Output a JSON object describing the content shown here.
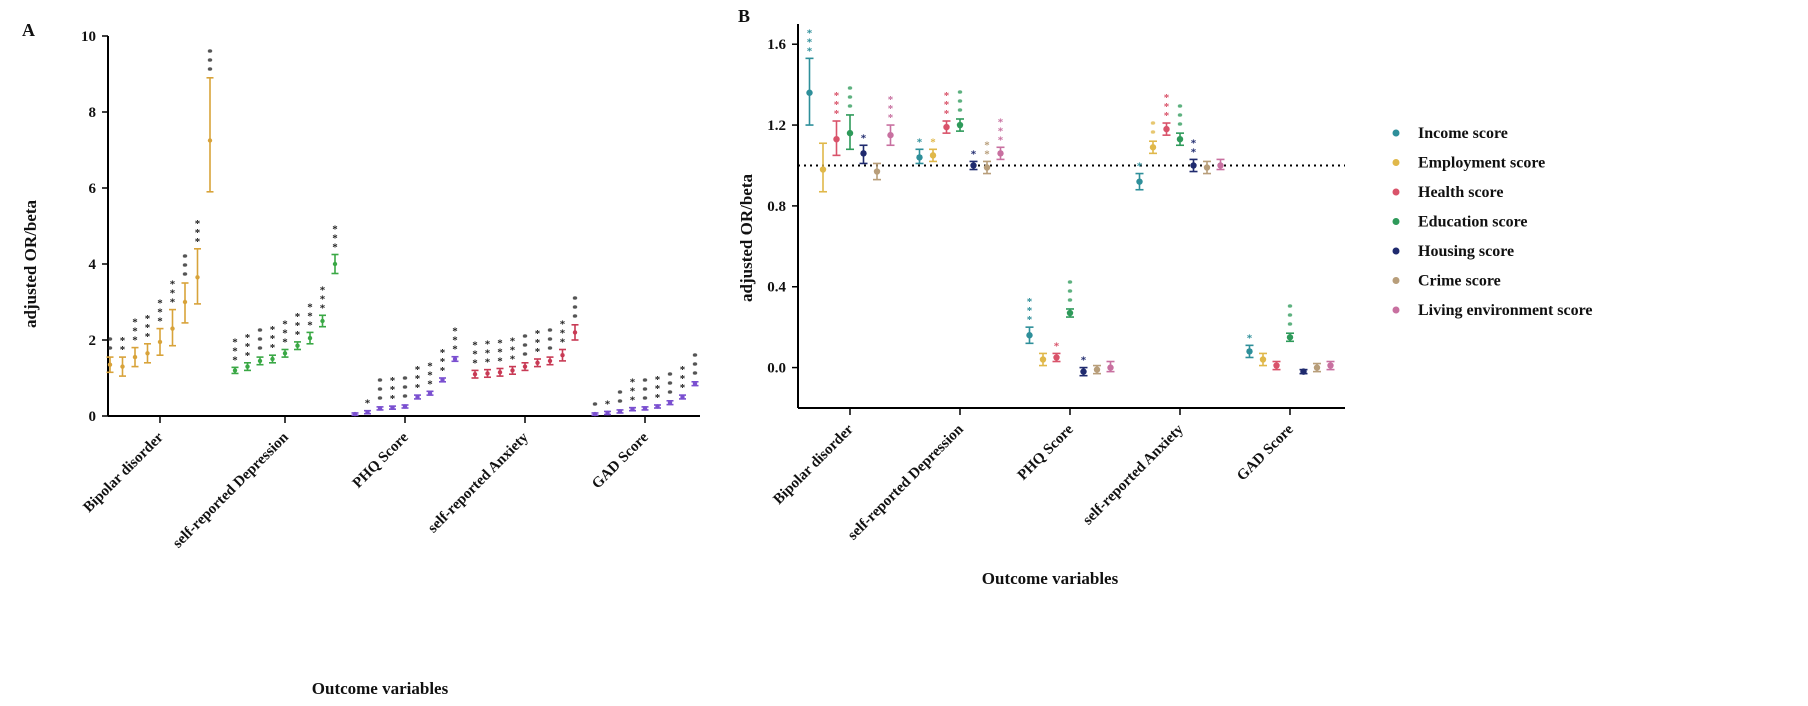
{
  "chart_data": [
    {
      "panel_label": "A",
      "type": "scatter",
      "xlabel": "Outcome variables",
      "ylabel": "adjusted OR/beta",
      "ylim": [
        0,
        10
      ],
      "yticks": [
        "0",
        "2",
        "4",
        "6",
        "8",
        "10"
      ],
      "categories": [
        "Bipolar disorder",
        "self-reported Depression",
        "PHQ Score",
        "self-reported Anxiety",
        "GAD Score"
      ],
      "groups": [
        {
          "category": "Bipolar disorder",
          "color": "#d8a33a",
          "points": [
            {
              "y": 1.35,
              "lo": 1.15,
              "hi": 1.55,
              "stars": "**"
            },
            {
              "y": 1.3,
              "lo": 1.05,
              "hi": 1.55,
              "stars": "**"
            },
            {
              "y": 1.55,
              "lo": 1.3,
              "hi": 1.8,
              "stars": "***"
            },
            {
              "y": 1.65,
              "lo": 1.4,
              "hi": 1.9,
              "stars": "***"
            },
            {
              "y": 1.95,
              "lo": 1.6,
              "hi": 2.3,
              "stars": "***"
            },
            {
              "y": 2.3,
              "lo": 1.85,
              "hi": 2.8,
              "stars": "***"
            },
            {
              "y": 3.0,
              "lo": 2.45,
              "hi": 3.5,
              "stars": "***"
            },
            {
              "y": 3.65,
              "lo": 2.95,
              "hi": 4.4,
              "stars": "***"
            },
            {
              "y": 7.25,
              "lo": 5.9,
              "hi": 8.9,
              "stars": "***"
            }
          ]
        },
        {
          "category": "self-reported Depression",
          "color": "#3aa845",
          "points": [
            {
              "y": 1.2,
              "lo": 1.12,
              "hi": 1.28,
              "stars": "***"
            },
            {
              "y": 1.3,
              "lo": 1.2,
              "hi": 1.4,
              "stars": "***"
            },
            {
              "y": 1.45,
              "lo": 1.35,
              "hi": 1.55,
              "stars": "***"
            },
            {
              "y": 1.5,
              "lo": 1.4,
              "hi": 1.6,
              "stars": "***"
            },
            {
              "y": 1.65,
              "lo": 1.55,
              "hi": 1.75,
              "stars": "***"
            },
            {
              "y": 1.85,
              "lo": 1.75,
              "hi": 1.95,
              "stars": "***"
            },
            {
              "y": 2.05,
              "lo": 1.9,
              "hi": 2.2,
              "stars": "***"
            },
            {
              "y": 2.5,
              "lo": 2.35,
              "hi": 2.65,
              "stars": "***"
            },
            {
              "y": 4.0,
              "lo": 3.75,
              "hi": 4.25,
              "stars": "***"
            }
          ]
        },
        {
          "category": "PHQ Score",
          "color": "#7a4fd0",
          "points": [
            {
              "y": 0.05,
              "lo": 0.02,
              "hi": 0.08,
              "stars": ""
            },
            {
              "y": 0.1,
              "lo": 0.06,
              "hi": 0.14,
              "stars": "*"
            },
            {
              "y": 0.2,
              "lo": 0.16,
              "hi": 0.24,
              "stars": "***"
            },
            {
              "y": 0.22,
              "lo": 0.18,
              "hi": 0.26,
              "stars": "***"
            },
            {
              "y": 0.25,
              "lo": 0.21,
              "hi": 0.29,
              "stars": "***"
            },
            {
              "y": 0.5,
              "lo": 0.45,
              "hi": 0.55,
              "stars": "***"
            },
            {
              "y": 0.6,
              "lo": 0.55,
              "hi": 0.65,
              "stars": "***"
            },
            {
              "y": 0.95,
              "lo": 0.9,
              "hi": 1.0,
              "stars": "***"
            },
            {
              "y": 1.5,
              "lo": 1.44,
              "hi": 1.56,
              "stars": "***"
            }
          ]
        },
        {
          "category": "self-reported Anxiety",
          "color": "#c83a55",
          "points": [
            {
              "y": 1.1,
              "lo": 1.0,
              "hi": 1.2,
              "stars": "***"
            },
            {
              "y": 1.12,
              "lo": 1.02,
              "hi": 1.22,
              "stars": "***"
            },
            {
              "y": 1.15,
              "lo": 1.05,
              "hi": 1.25,
              "stars": "***"
            },
            {
              "y": 1.2,
              "lo": 1.1,
              "hi": 1.3,
              "stars": "***"
            },
            {
              "y": 1.3,
              "lo": 1.2,
              "hi": 1.4,
              "stars": "***"
            },
            {
              "y": 1.4,
              "lo": 1.3,
              "hi": 1.5,
              "stars": "***"
            },
            {
              "y": 1.45,
              "lo": 1.35,
              "hi": 1.55,
              "stars": "***"
            },
            {
              "y": 1.6,
              "lo": 1.45,
              "hi": 1.75,
              "stars": "***"
            },
            {
              "y": 2.2,
              "lo": 2.0,
              "hi": 2.4,
              "stars": "***"
            }
          ]
        },
        {
          "category": "GAD Score",
          "color": "#7a4fd0",
          "points": [
            {
              "y": 0.05,
              "lo": 0.02,
              "hi": 0.08,
              "stars": "*"
            },
            {
              "y": 0.08,
              "lo": 0.04,
              "hi": 0.12,
              "stars": "*"
            },
            {
              "y": 0.12,
              "lo": 0.08,
              "hi": 0.16,
              "stars": "**"
            },
            {
              "y": 0.18,
              "lo": 0.14,
              "hi": 0.22,
              "stars": "***"
            },
            {
              "y": 0.2,
              "lo": 0.16,
              "hi": 0.24,
              "stars": "***"
            },
            {
              "y": 0.25,
              "lo": 0.21,
              "hi": 0.29,
              "stars": "***"
            },
            {
              "y": 0.35,
              "lo": 0.3,
              "hi": 0.4,
              "stars": "***"
            },
            {
              "y": 0.5,
              "lo": 0.45,
              "hi": 0.55,
              "stars": "***"
            },
            {
              "y": 0.85,
              "lo": 0.8,
              "hi": 0.9,
              "stars": "***"
            }
          ]
        }
      ]
    },
    {
      "panel_label": "B",
      "type": "scatter",
      "xlabel": "Outcome variables",
      "ylabel": "adjusted OR/beta",
      "ylim": [
        -0.2,
        1.7
      ],
      "yticks": [
        {
          "value": 0.0,
          "label": "0.0"
        },
        {
          "value": 0.4,
          "label": "0.4"
        },
        {
          "value": 0.8,
          "label": "0.8"
        },
        {
          "value": 1.2,
          "label": "1.2"
        },
        {
          "value": 1.6,
          "label": "1.6"
        }
      ],
      "reference_line": 1.0,
      "categories": [
        "Bipolar disorder",
        "self-reported Depression",
        "PHQ Score",
        "self-reported Anxiety",
        "GAD Score"
      ],
      "series": [
        {
          "name": "Income score",
          "color": "#2e8f9a",
          "points": [
            {
              "y": 1.36,
              "lo": 1.2,
              "hi": 1.53,
              "stars": "***"
            },
            {
              "y": 1.04,
              "lo": 1.01,
              "hi": 1.08,
              "stars": "*"
            },
            {
              "y": 0.16,
              "lo": 0.12,
              "hi": 0.2,
              "stars": "***"
            },
            {
              "y": 0.92,
              "lo": 0.88,
              "hi": 0.96,
              "stars": "*"
            },
            {
              "y": 0.08,
              "lo": 0.05,
              "hi": 0.11,
              "stars": "*"
            }
          ]
        },
        {
          "name": "Employment score",
          "color": "#e0b84a",
          "points": [
            {
              "y": 0.98,
              "lo": 0.87,
              "hi": 1.11,
              "stars": ""
            },
            {
              "y": 1.05,
              "lo": 1.02,
              "hi": 1.08,
              "stars": "*"
            },
            {
              "y": 0.04,
              "lo": 0.01,
              "hi": 0.07,
              "stars": ""
            },
            {
              "y": 1.09,
              "lo": 1.06,
              "hi": 1.12,
              "stars": "**"
            },
            {
              "y": 0.04,
              "lo": 0.01,
              "hi": 0.07,
              "stars": ""
            }
          ]
        },
        {
          "name": "Health score",
          "color": "#d9536a",
          "points": [
            {
              "y": 1.13,
              "lo": 1.05,
              "hi": 1.22,
              "stars": "***"
            },
            {
              "y": 1.19,
              "lo": 1.16,
              "hi": 1.22,
              "stars": "***"
            },
            {
              "y": 0.05,
              "lo": 0.03,
              "hi": 0.07,
              "stars": "*"
            },
            {
              "y": 1.18,
              "lo": 1.15,
              "hi": 1.21,
              "stars": "***"
            },
            {
              "y": 0.01,
              "lo": -0.01,
              "hi": 0.03,
              "stars": ""
            }
          ]
        },
        {
          "name": "Education score",
          "color": "#2e9a5a",
          "points": [
            {
              "y": 1.16,
              "lo": 1.08,
              "hi": 1.25,
              "stars": "***"
            },
            {
              "y": 1.2,
              "lo": 1.17,
              "hi": 1.23,
              "stars": "***"
            },
            {
              "y": 0.27,
              "lo": 0.25,
              "hi": 0.29,
              "stars": "***"
            },
            {
              "y": 1.13,
              "lo": 1.1,
              "hi": 1.16,
              "stars": "***"
            },
            {
              "y": 0.15,
              "lo": 0.13,
              "hi": 0.17,
              "stars": "***"
            }
          ]
        },
        {
          "name": "Housing score",
          "color": "#1f2a6e",
          "points": [
            {
              "y": 1.06,
              "lo": 1.01,
              "hi": 1.1,
              "stars": "*"
            },
            {
              "y": 1.0,
              "lo": 0.98,
              "hi": 1.02,
              "stars": "*"
            },
            {
              "y": -0.02,
              "lo": -0.04,
              "hi": 0.0,
              "stars": "*"
            },
            {
              "y": 1.0,
              "lo": 0.97,
              "hi": 1.03,
              "stars": "**"
            },
            {
              "y": -0.02,
              "lo": -0.03,
              "hi": -0.01,
              "stars": ""
            }
          ]
        },
        {
          "name": "Crime score",
          "color": "#b89e7a",
          "points": [
            {
              "y": 0.97,
              "lo": 0.93,
              "hi": 1.01,
              "stars": ""
            },
            {
              "y": 0.99,
              "lo": 0.96,
              "hi": 1.02,
              "stars": "**"
            },
            {
              "y": -0.01,
              "lo": -0.03,
              "hi": 0.01,
              "stars": ""
            },
            {
              "y": 0.99,
              "lo": 0.96,
              "hi": 1.02,
              "stars": ""
            },
            {
              "y": 0.0,
              "lo": -0.02,
              "hi": 0.02,
              "stars": ""
            }
          ]
        },
        {
          "name": "Living environment score",
          "color": "#c870a0",
          "points": [
            {
              "y": 1.15,
              "lo": 1.1,
              "hi": 1.2,
              "stars": "***"
            },
            {
              "y": 1.06,
              "lo": 1.03,
              "hi": 1.09,
              "stars": "***"
            },
            {
              "y": 0.0,
              "lo": -0.02,
              "hi": 0.03,
              "stars": ""
            },
            {
              "y": 1.0,
              "lo": 0.98,
              "hi": 1.03,
              "stars": ""
            },
            {
              "y": 0.01,
              "lo": -0.01,
              "hi": 0.03,
              "stars": ""
            }
          ]
        }
      ],
      "legend_position": "right"
    }
  ]
}
